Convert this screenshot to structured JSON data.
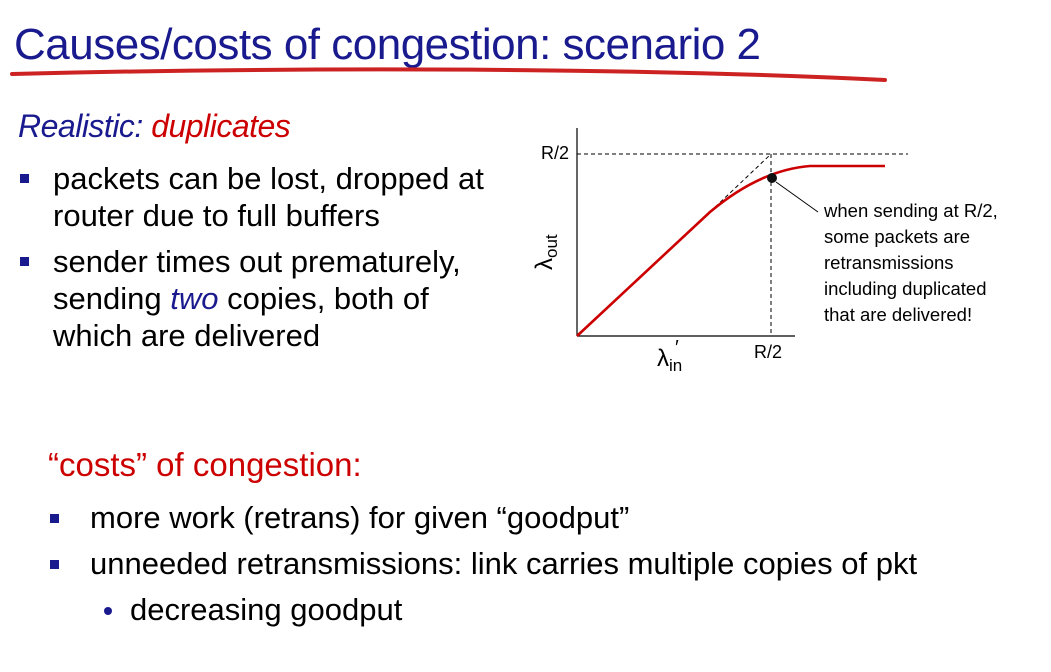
{
  "title": "Causes/costs of congestion: scenario 2",
  "subtitle": {
    "prefix": "Realistic:",
    "accent": "duplicates"
  },
  "bullets": [
    {
      "lines": [
        "packets can be lost, dropped at",
        "router due  to full buffers"
      ]
    },
    {
      "line1": "sender times out prematurely,",
      "line2_before": "sending ",
      "line2_emph": "two",
      "line2_after": " copies, both of",
      "line3": "which are delivered"
    }
  ],
  "diagram": {
    "y_tick": "R/2",
    "x_tick": "R/2",
    "y_axis_symbol": "λ",
    "y_axis_sub": "out",
    "x_axis_symbol": "λ",
    "x_axis_sub": "in",
    "x_axis_prime": "′",
    "annotation": [
      "when sending at R/2,",
      "some packets are",
      "retransmissions",
      "including duplicated",
      "that are delivered!"
    ],
    "colors": {
      "curve": "#cc0000",
      "title": "#1a1a8f",
      "accent": "#cc0000"
    }
  },
  "costs": {
    "heading": "“costs” of congestion:",
    "items": [
      "more work (retrans) for given “goodput”",
      "unneeded retransmissions: link carries multiple copies of pkt"
    ],
    "subitems": [
      "decreasing goodput"
    ]
  }
}
